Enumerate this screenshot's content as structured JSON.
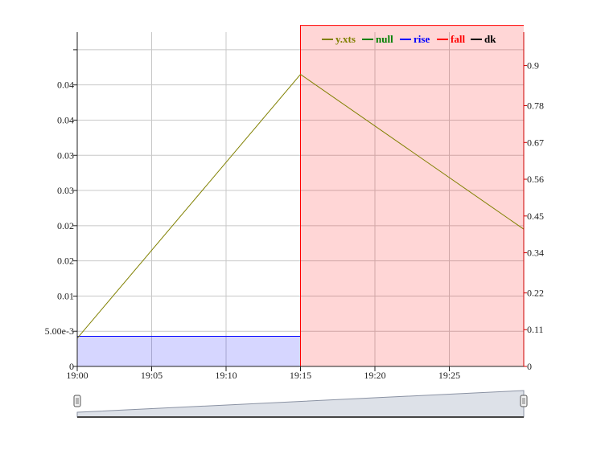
{
  "chart_data": {
    "type": "line",
    "title": "",
    "x_time": {
      "start": "19:00",
      "end": "19:30",
      "ticks": [
        "19:00",
        "19:05",
        "19:10",
        "19:15",
        "19:20",
        "19:25"
      ]
    },
    "y_left": {
      "range": [
        0,
        0.0475
      ],
      "ticks": [
        0,
        0.005,
        0.01,
        0.015,
        0.02,
        0.025,
        0.03,
        0.035,
        0.04,
        0.045
      ],
      "tick_labels": [
        "0",
        "5.00e-3",
        "0.01",
        "0.02",
        "0.02",
        "0.03",
        "0.03",
        "0.04",
        "0.04",
        ""
      ]
    },
    "y_right": {
      "range": [
        0,
        1.0
      ],
      "ticks": [
        0,
        0.11,
        0.22,
        0.34,
        0.45,
        0.56,
        0.67,
        0.78,
        0.9
      ],
      "tick_labels": [
        "0",
        "0.11",
        "0.22",
        "0.34",
        "0.45",
        "0.56",
        "0.67",
        "0.78",
        "0.9"
      ]
    },
    "series": [
      {
        "name": "y.xts",
        "color": "#808000",
        "axis": "left",
        "kind": "line",
        "points": [
          [
            "19:00",
            0.004
          ],
          [
            "19:15",
            0.0415
          ],
          [
            "19:30",
            0.0195
          ]
        ]
      },
      {
        "name": "null",
        "color": "#008000",
        "axis": "right",
        "kind": "line",
        "points": []
      },
      {
        "name": "rise",
        "color": "#0000ff",
        "axis": "right",
        "kind": "step-area",
        "points": [
          [
            "19:00",
            0.09
          ],
          [
            "19:15",
            0.09
          ],
          [
            "19:15",
            0
          ]
        ]
      },
      {
        "name": "fall",
        "color": "#ff0000",
        "axis": "right",
        "kind": "step-area",
        "points": [
          [
            "19:15",
            0
          ],
          [
            "19:15",
            1.02
          ],
          [
            "19:30",
            1.02
          ]
        ]
      },
      {
        "name": "dk",
        "color": "#000000",
        "axis": "right",
        "kind": "line",
        "points": []
      }
    ],
    "grid": true,
    "legend": "top-right",
    "range_selector": true
  }
}
